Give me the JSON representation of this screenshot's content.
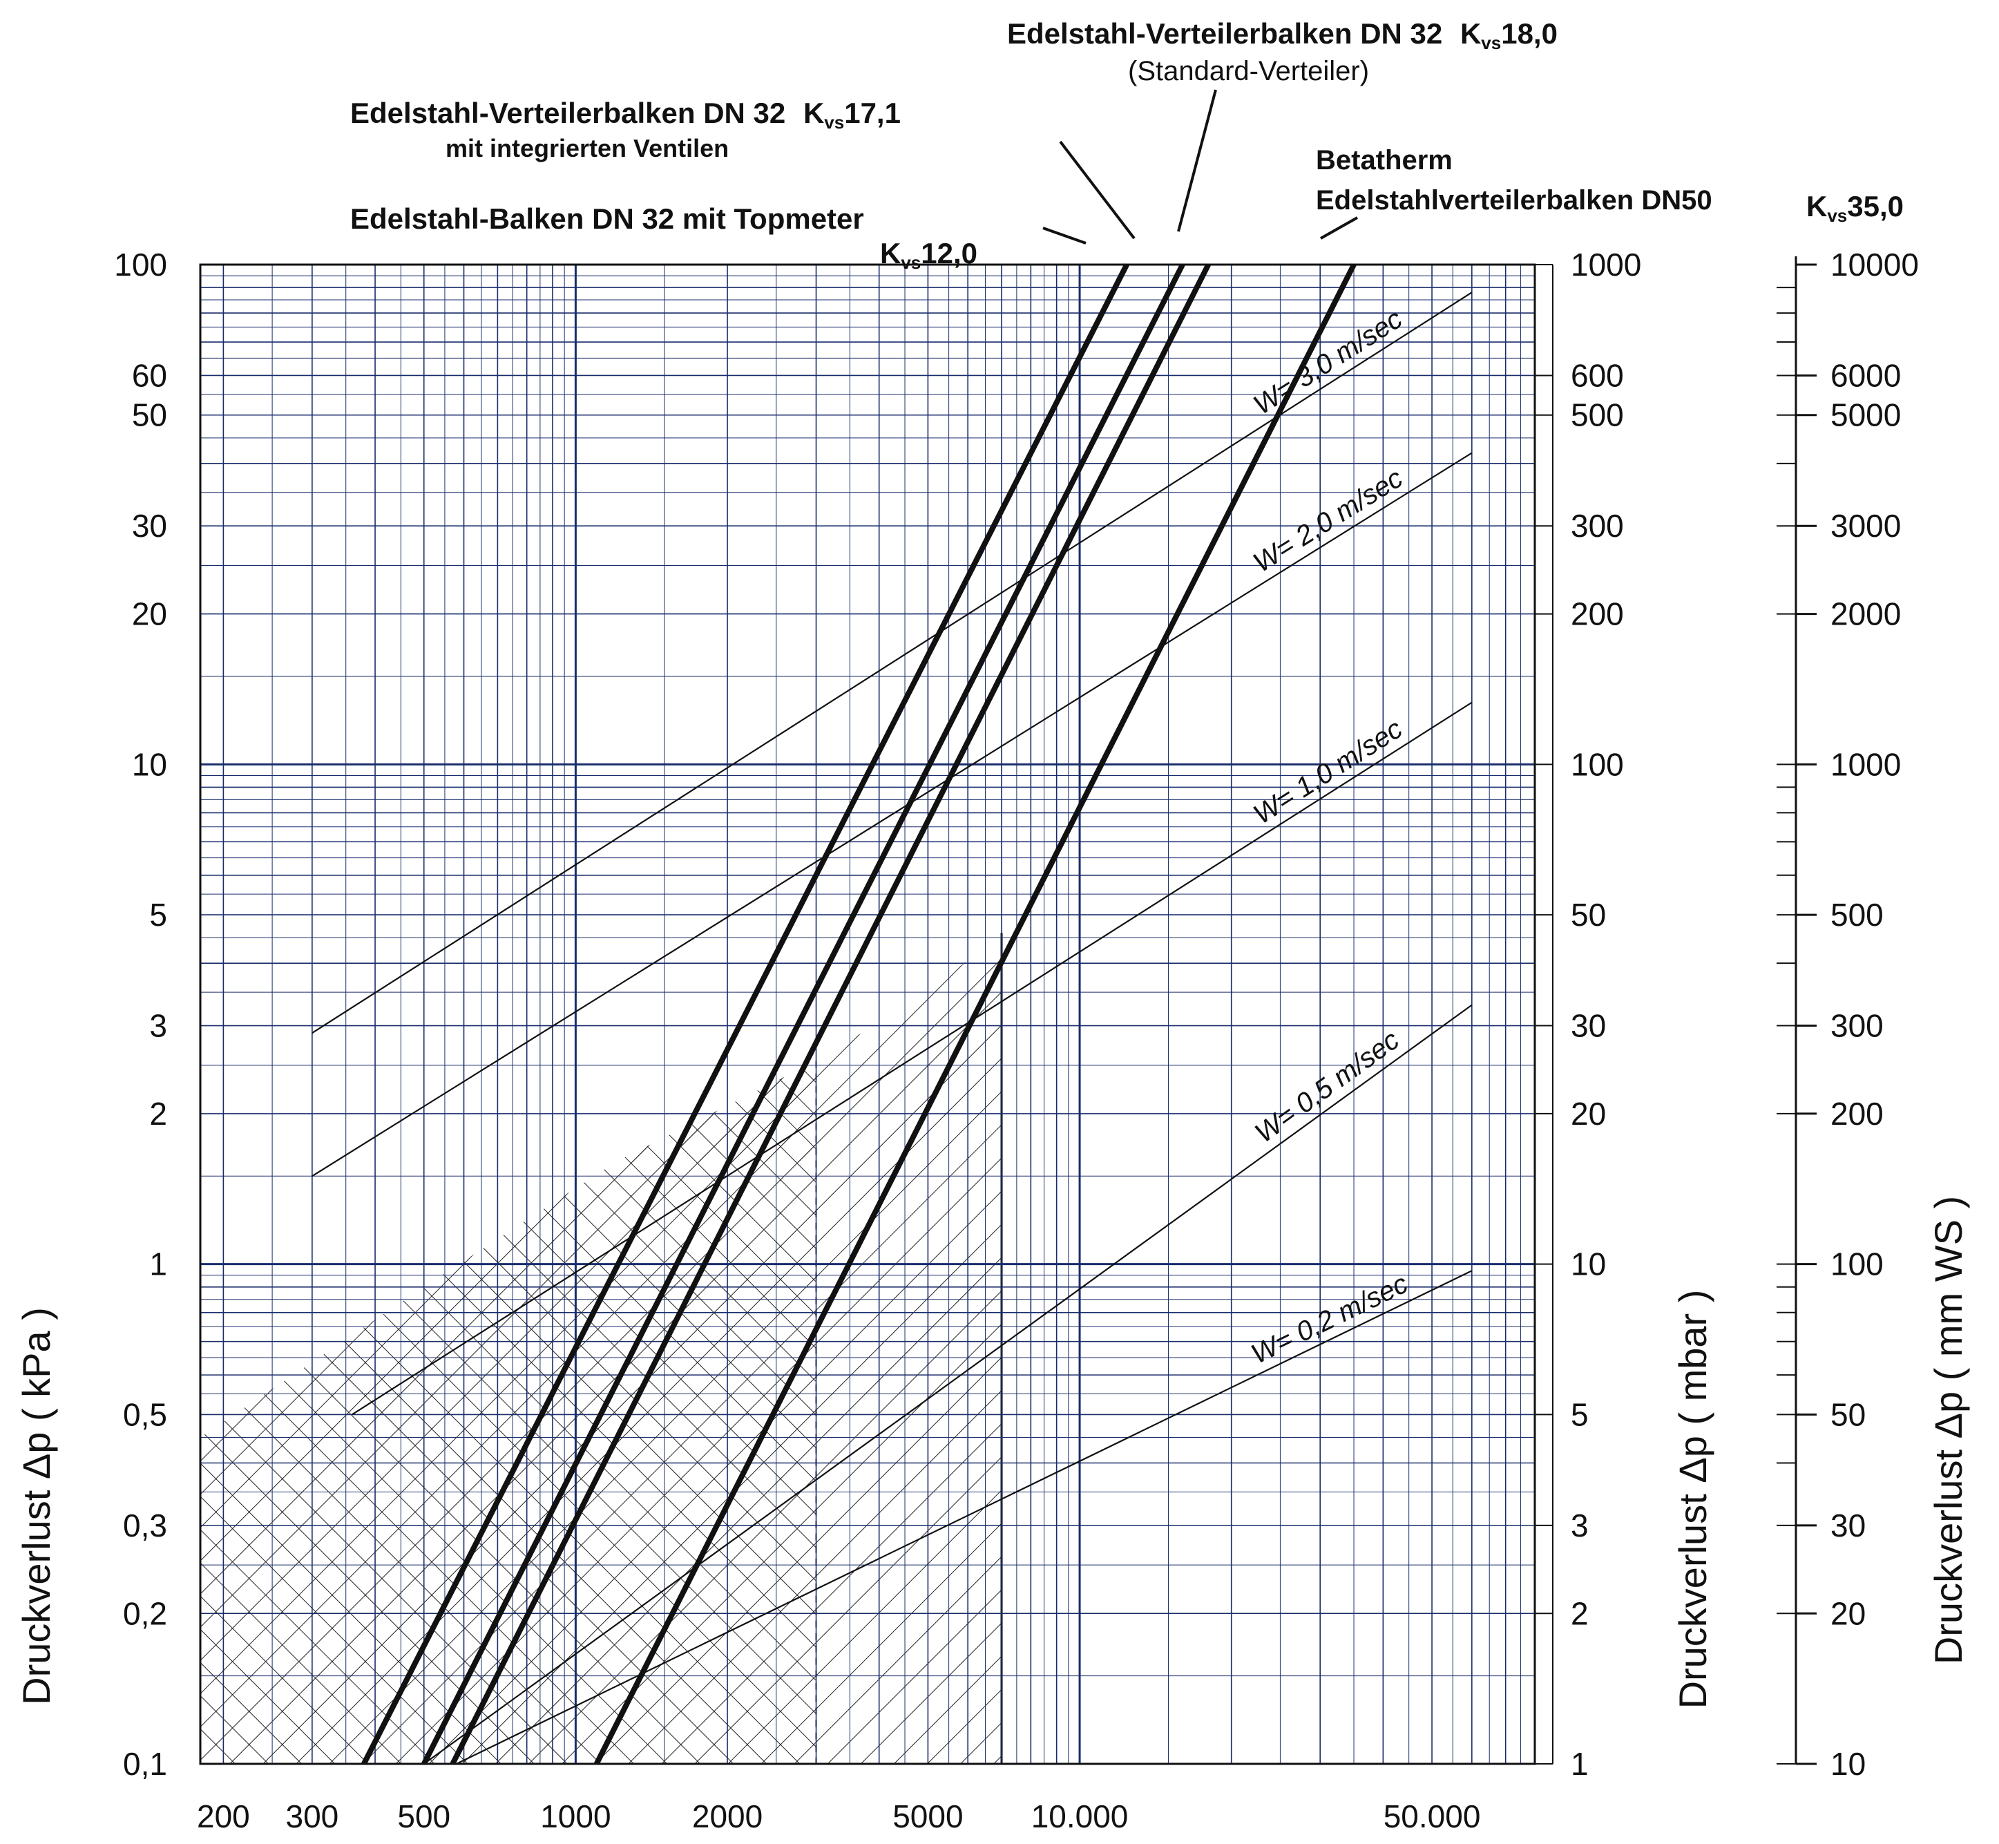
{
  "chart_data": {
    "type": "line",
    "x_scale": "log",
    "y_scale": "log",
    "xlim": [
      180,
      80000
    ],
    "ylim": [
      0.1,
      100
    ],
    "grid": true,
    "grid_color": "#1a2d6b",
    "hatch_color": "#222222",
    "x_ticks": [
      {
        "value": 200,
        "label": "200"
      },
      {
        "value": 300,
        "label": "300"
      },
      {
        "value": 500,
        "label": "500"
      },
      {
        "value": 1000,
        "label": "1000"
      },
      {
        "value": 2000,
        "label": "2000"
      },
      {
        "value": 5000,
        "label": "5000"
      },
      {
        "value": 10000,
        "label": "10.000"
      },
      {
        "value": 50000,
        "label": "50.000"
      }
    ],
    "y_left": {
      "label": "Druckverlust Δp ( kPa )",
      "ticks": [
        {
          "value": 100,
          "label": "100"
        },
        {
          "value": 60,
          "label": "60"
        },
        {
          "value": 50,
          "label": "50"
        },
        {
          "value": 30,
          "label": "30"
        },
        {
          "value": 20,
          "label": "20"
        },
        {
          "value": 10,
          "label": "10"
        },
        {
          "value": 5,
          "label": "5"
        },
        {
          "value": 3,
          "label": "3"
        },
        {
          "value": 2,
          "label": "2"
        },
        {
          "value": 1,
          "label": "1"
        },
        {
          "value": 0.5,
          "label": "0,5"
        },
        {
          "value": 0.3,
          "label": "0,3"
        },
        {
          "value": 0.2,
          "label": "0,2"
        },
        {
          "value": 0.1,
          "label": "0,1"
        }
      ]
    },
    "y_mid": {
      "label": "Druckverlust Δp ( mbar )",
      "ticks": [
        {
          "value": 1000,
          "label": "1000"
        },
        {
          "value": 600,
          "label": "600"
        },
        {
          "value": 500,
          "label": "500"
        },
        {
          "value": 300,
          "label": "300"
        },
        {
          "value": 200,
          "label": "200"
        },
        {
          "value": 100,
          "label": "100"
        },
        {
          "value": 50,
          "label": "50"
        },
        {
          "value": 30,
          "label": "30"
        },
        {
          "value": 20,
          "label": "20"
        },
        {
          "value": 10,
          "label": "10"
        },
        {
          "value": 5,
          "label": "5"
        },
        {
          "value": 3,
          "label": "3"
        },
        {
          "value": 2,
          "label": "2"
        },
        {
          "value": 1,
          "label": "1"
        }
      ]
    },
    "y_right": {
      "label": "Druckverlust Δp ( mm WS )",
      "ticks": [
        {
          "value": 10000,
          "label": "10000"
        },
        {
          "value": 6000,
          "label": "6000"
        },
        {
          "value": 5000,
          "label": "5000"
        },
        {
          "value": 3000,
          "label": "3000"
        },
        {
          "value": 2000,
          "label": "2000"
        },
        {
          "value": 1000,
          "label": "1000"
        },
        {
          "value": 500,
          "label": "500"
        },
        {
          "value": 300,
          "label": "300"
        },
        {
          "value": 200,
          "label": "200"
        },
        {
          "value": 100,
          "label": "100"
        },
        {
          "value": 50,
          "label": "50"
        },
        {
          "value": 30,
          "label": "30"
        },
        {
          "value": 20,
          "label": "20"
        },
        {
          "value": 10,
          "label": "10"
        }
      ]
    },
    "series": [
      {
        "name": "Edelstahl-Balken DN 32 mit Topmeter",
        "kvs": 12.0,
        "x": [
          380,
          12400
        ],
        "y": [
          0.1,
          100
        ]
      },
      {
        "name": "Edelstahl-Verteilerbalken DN 32 mit integrierten Ventilen",
        "kvs": 17.1,
        "x": [
          500,
          16000
        ],
        "y": [
          0.1,
          100
        ]
      },
      {
        "name": "Edelstahl-Verteilerbalken DN 32 (Standard-Verteiler)",
        "kvs": 18.0,
        "x": [
          570,
          18000
        ],
        "y": [
          0.1,
          100
        ]
      },
      {
        "name": "Betatherm Edelstahlverteilerbalken DN50",
        "kvs": 35.0,
        "x": [
          1100,
          35000
        ],
        "y": [
          0.1,
          100
        ]
      }
    ],
    "velocity_lines": [
      {
        "label": "W= 3,0 m/sec",
        "x": [
          300,
          60000
        ],
        "y": [
          2.9,
          88
        ]
      },
      {
        "label": "W= 2,0 m/sec",
        "x": [
          300,
          60000
        ],
        "y": [
          1.5,
          42
        ]
      },
      {
        "label": "W= 1,0 m/sec",
        "x": [
          360,
          60000
        ],
        "y": [
          0.5,
          13.3
        ]
      },
      {
        "label": "W= 0,5 m/sec",
        "x": [
          500,
          60000
        ],
        "y": [
          0.1,
          3.3
        ]
      },
      {
        "label": "W= 0,2 m/sec",
        "x": [
          580,
          60000
        ],
        "y": [
          0.1,
          0.97
        ]
      }
    ],
    "annotations": {
      "std_title": "Edelstahl-Verteilerbalken DN 32",
      "std_kvs_value": "18,0",
      "std_paren": "(Standard-Verteiler)",
      "valves_title": "Edelstahl-Verteilerbalken DN 32",
      "valves_kvs_value": "17,1",
      "valves_sub": "mit integrierten Ventilen",
      "topmeter_title": "Edelstahl-Balken DN 32 mit Topmeter",
      "topmeter_kvs_value": "12,0",
      "betatherm_line1": "Betatherm",
      "betatherm_line2": "Edelstahlverteilerbalken DN50",
      "betatherm_kvs_value": "35,0",
      "kvs_K": "K",
      "kvs_sub": "vs"
    }
  }
}
